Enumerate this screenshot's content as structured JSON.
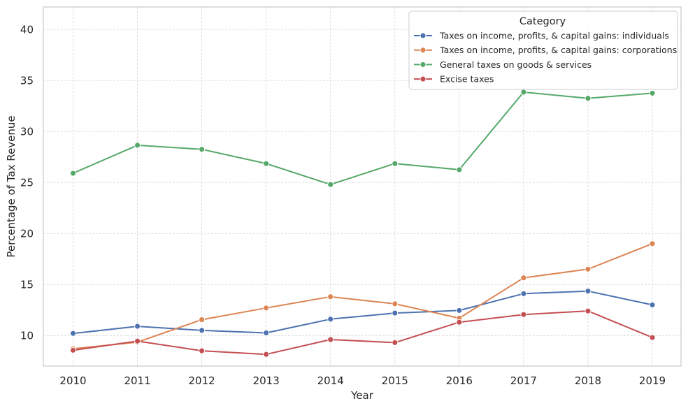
{
  "chart_data": {
    "type": "line",
    "xlabel": "Year",
    "ylabel": "Percentage of Tax Revenue",
    "x": [
      "2010",
      "2011",
      "2012",
      "2013",
      "2014",
      "2015",
      "2016",
      "2017",
      "2018",
      "2019"
    ],
    "ylim": [
      7.0,
      42.2
    ],
    "yticks": [
      "10",
      "15",
      "20",
      "25",
      "30",
      "35",
      "40"
    ],
    "grid": true,
    "legend": {
      "title": "Category",
      "placement": "top-right"
    },
    "series": [
      {
        "name": "Taxes on income, profits, & capital gains: individuals",
        "color": "#4c72b0",
        "values": [
          10.2,
          10.9,
          10.5,
          10.25,
          11.6,
          12.2,
          12.45,
          14.1,
          14.35,
          13.0
        ]
      },
      {
        "name": "Taxes on income, profits, & capital gains: corporations",
        "color": "#dd8452",
        "values": [
          8.7,
          9.35,
          11.55,
          12.7,
          13.8,
          13.1,
          11.7,
          15.65,
          16.5,
          19.0
        ]
      },
      {
        "name": "General taxes on goods & services",
        "color": "#55a868",
        "values": [
          25.9,
          28.65,
          28.25,
          26.85,
          24.8,
          26.85,
          26.25,
          33.85,
          33.25,
          33.75
        ]
      },
      {
        "name": "Excise taxes",
        "color": "#c44e52",
        "values": [
          8.55,
          9.45,
          8.5,
          8.15,
          9.6,
          9.3,
          11.3,
          12.05,
          12.4,
          9.8
        ]
      }
    ]
  }
}
